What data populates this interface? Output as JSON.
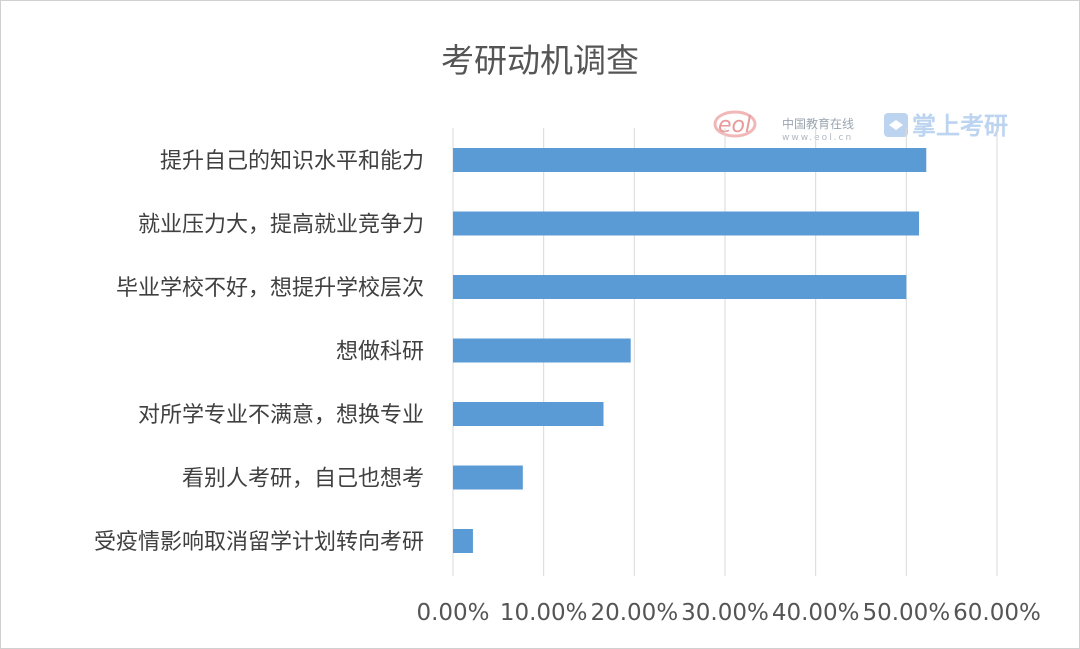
{
  "chart_data": {
    "type": "bar",
    "orientation": "horizontal",
    "title": "考研动机调查",
    "categories": [
      "提升自己的知识水平和能力",
      "就业压力大，提高就业竞争力",
      "毕业学校不好，想提升学校层次",
      "想做科研",
      "对所学专业不满意，想换专业",
      "看别人考研，自己也想考",
      "受疫情影响取消留学计划转向考研"
    ],
    "values": [
      0.522,
      0.514,
      0.5,
      0.196,
      0.166,
      0.077,
      0.022
    ],
    "xlim": [
      0,
      0.6
    ],
    "x_ticks": [
      0,
      0.1,
      0.2,
      0.3,
      0.4,
      0.5,
      0.6
    ],
    "x_tick_labels": [
      "0.00%",
      "10.00%",
      "20.00%",
      "30.00%",
      "40.00%",
      "50.00%",
      "60.00%"
    ],
    "grid": "vertical",
    "bar_color": "#5b9bd5",
    "grid_color": "#d9d9d9"
  },
  "watermark": {
    "logo_text": "eol",
    "site_name": "中国教育在线",
    "site_url": "www.eol.cn",
    "brand": "掌上考研"
  }
}
